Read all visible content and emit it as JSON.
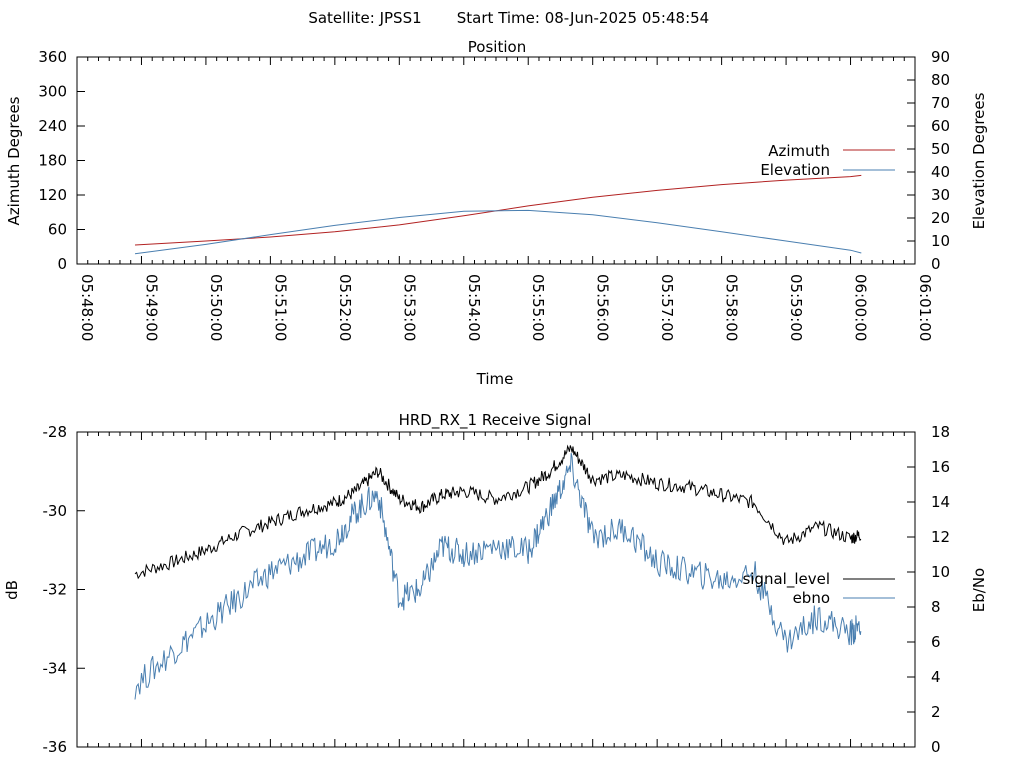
{
  "header": {
    "satellite": "Satellite: JPSS1",
    "start_time": "Start Time: 08-Jun-2025 05:48:54"
  },
  "chart_data": [
    {
      "type": "line",
      "title": "Position",
      "xlabel": "Time",
      "ylabel": "Azimuth Degrees",
      "y2label": "Elevation Degrees",
      "x_ticks": [
        "05:48:00",
        "05:49:00",
        "05:50:00",
        "05:51:00",
        "05:52:00",
        "05:53:00",
        "05:54:00",
        "05:55:00",
        "05:56:00",
        "05:57:00",
        "05:58:00",
        "05:59:00",
        "06:00:00",
        "06:01:00"
      ],
      "y_ticks": [
        "0",
        "60",
        "120",
        "180",
        "240",
        "300",
        "360"
      ],
      "y2_ticks": [
        "0",
        "10",
        "20",
        "30",
        "40",
        "50",
        "60",
        "70",
        "80",
        "90"
      ],
      "ylim": [
        0,
        360
      ],
      "y2lim": [
        0,
        90
      ],
      "legend_position": "right",
      "series": [
        {
          "name": "Azimuth",
          "axis": "left",
          "color": "#b22222",
          "x": [
            "05:48:54",
            "05:50:00",
            "05:51:00",
            "05:52:00",
            "05:53:00",
            "05:54:00",
            "05:55:00",
            "05:56:00",
            "05:57:00",
            "05:58:00",
            "05:59:00",
            "06:00:00",
            "06:00:10"
          ],
          "y": [
            33,
            40,
            47,
            56,
            68,
            84,
            101,
            116,
            128,
            138,
            146,
            152,
            154
          ]
        },
        {
          "name": "Elevation",
          "axis": "right",
          "color": "#4a7fb0",
          "x": [
            "05:48:54",
            "05:50:00",
            "05:51:00",
            "05:52:00",
            "05:53:00",
            "05:54:00",
            "05:55:00",
            "05:56:00",
            "05:57:00",
            "05:58:00",
            "05:59:00",
            "06:00:00",
            "06:00:10"
          ],
          "y": [
            4.5,
            8.5,
            12.8,
            16.8,
            20.2,
            22.9,
            23.3,
            21.4,
            17.9,
            14.0,
            10.0,
            6.0,
            4.8
          ]
        }
      ]
    },
    {
      "type": "line",
      "title": "HRD_RX_1 Receive Signal",
      "ylabel": "dB",
      "y2label": "Eb/No",
      "y_ticks": [
        "-36",
        "-34",
        "-32",
        "-30",
        "-28"
      ],
      "y2_ticks": [
        "0",
        "2",
        "4",
        "6",
        "8",
        "10",
        "12",
        "14",
        "16",
        "18"
      ],
      "ylim": [
        -36,
        -28
      ],
      "y2lim": [
        0,
        18
      ],
      "legend_position": "right",
      "series": [
        {
          "name": "signal_level",
          "axis": "left",
          "color": "#000000",
          "x": [
            "05:48:54",
            "05:49:30",
            "05:50:00",
            "05:50:30",
            "05:51:00",
            "05:51:30",
            "05:52:00",
            "05:52:20",
            "05:52:40",
            "05:53:00",
            "05:53:20",
            "05:53:40",
            "05:54:00",
            "05:54:30",
            "05:55:00",
            "05:55:20",
            "05:55:40",
            "05:56:00",
            "05:56:30",
            "05:57:00",
            "05:57:30",
            "05:58:00",
            "05:58:30",
            "05:59:00",
            "05:59:30",
            "06:00:00",
            "06:00:10"
          ],
          "y": [
            -31.6,
            -31.3,
            -31.0,
            -30.6,
            -30.3,
            -30.0,
            -29.8,
            -29.5,
            -29.0,
            -29.7,
            -29.9,
            -29.6,
            -29.5,
            -29.7,
            -29.4,
            -29.0,
            -28.4,
            -29.2,
            -29.1,
            -29.3,
            -29.4,
            -29.6,
            -29.8,
            -30.8,
            -30.4,
            -30.7,
            -30.6
          ]
        },
        {
          "name": "ebno",
          "axis": "right",
          "color": "#4a7fb0",
          "x": [
            "05:48:54",
            "05:49:30",
            "05:50:00",
            "05:50:30",
            "05:51:00",
            "05:51:30",
            "05:52:00",
            "05:52:20",
            "05:52:40",
            "05:53:00",
            "05:53:20",
            "05:53:40",
            "05:54:00",
            "05:54:30",
            "05:55:00",
            "05:55:20",
            "05:55:40",
            "05:56:00",
            "05:56:30",
            "05:57:00",
            "05:57:30",
            "05:58:00",
            "05:58:30",
            "05:59:00",
            "05:59:30",
            "06:00:00",
            "06:00:10"
          ],
          "y": [
            3.5,
            5.5,
            7.0,
            8.5,
            10.0,
            10.8,
            11.8,
            13.5,
            14.5,
            8.5,
            9.0,
            11.5,
            11.0,
            11.5,
            11.2,
            13.5,
            16.0,
            12.0,
            12.5,
            10.5,
            10.0,
            9.5,
            10.0,
            6.0,
            7.5,
            6.5,
            7.0
          ]
        }
      ]
    }
  ]
}
